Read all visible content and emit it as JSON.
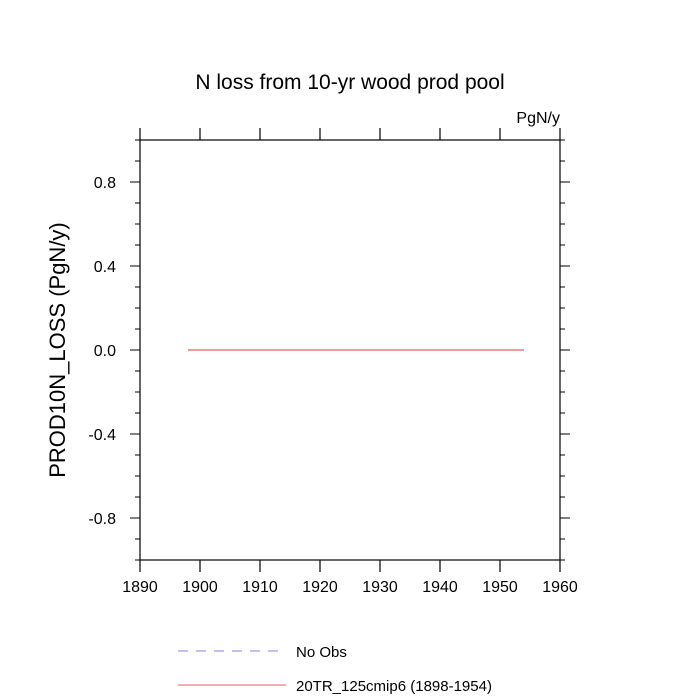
{
  "chart_data": {
    "type": "line",
    "title": "N loss from 10-yr wood prod pool",
    "units_label": "PgN/y",
    "xlabel": "",
    "ylabel": "PROD10N_LOSS  (PgN/y)",
    "xlim": [
      1890,
      1960
    ],
    "ylim": [
      -1.0,
      1.0
    ],
    "x_ticks": [
      1890,
      1900,
      1910,
      1920,
      1930,
      1940,
      1950,
      1960
    ],
    "x_tick_labels": [
      "1890",
      "1900",
      "1910",
      "1920",
      "1930",
      "1940",
      "1950",
      "1960"
    ],
    "y_ticks": [
      -0.8,
      -0.4,
      0.0,
      0.4,
      0.8
    ],
    "y_tick_labels": [
      "-0.8",
      "-0.4",
      "0.0",
      "0.4",
      "0.8"
    ],
    "grid": false,
    "legend_position": "bottom",
    "series": [
      {
        "name": "No Obs",
        "color": "#8080f0",
        "dash": "dashed",
        "x": [],
        "y": []
      },
      {
        "name": "20TR_125cmip6 (1898-1954)",
        "color": "#e06060",
        "dash": "solid",
        "x": [
          1898,
          1954
        ],
        "y": [
          0.0,
          0.0
        ]
      }
    ]
  }
}
